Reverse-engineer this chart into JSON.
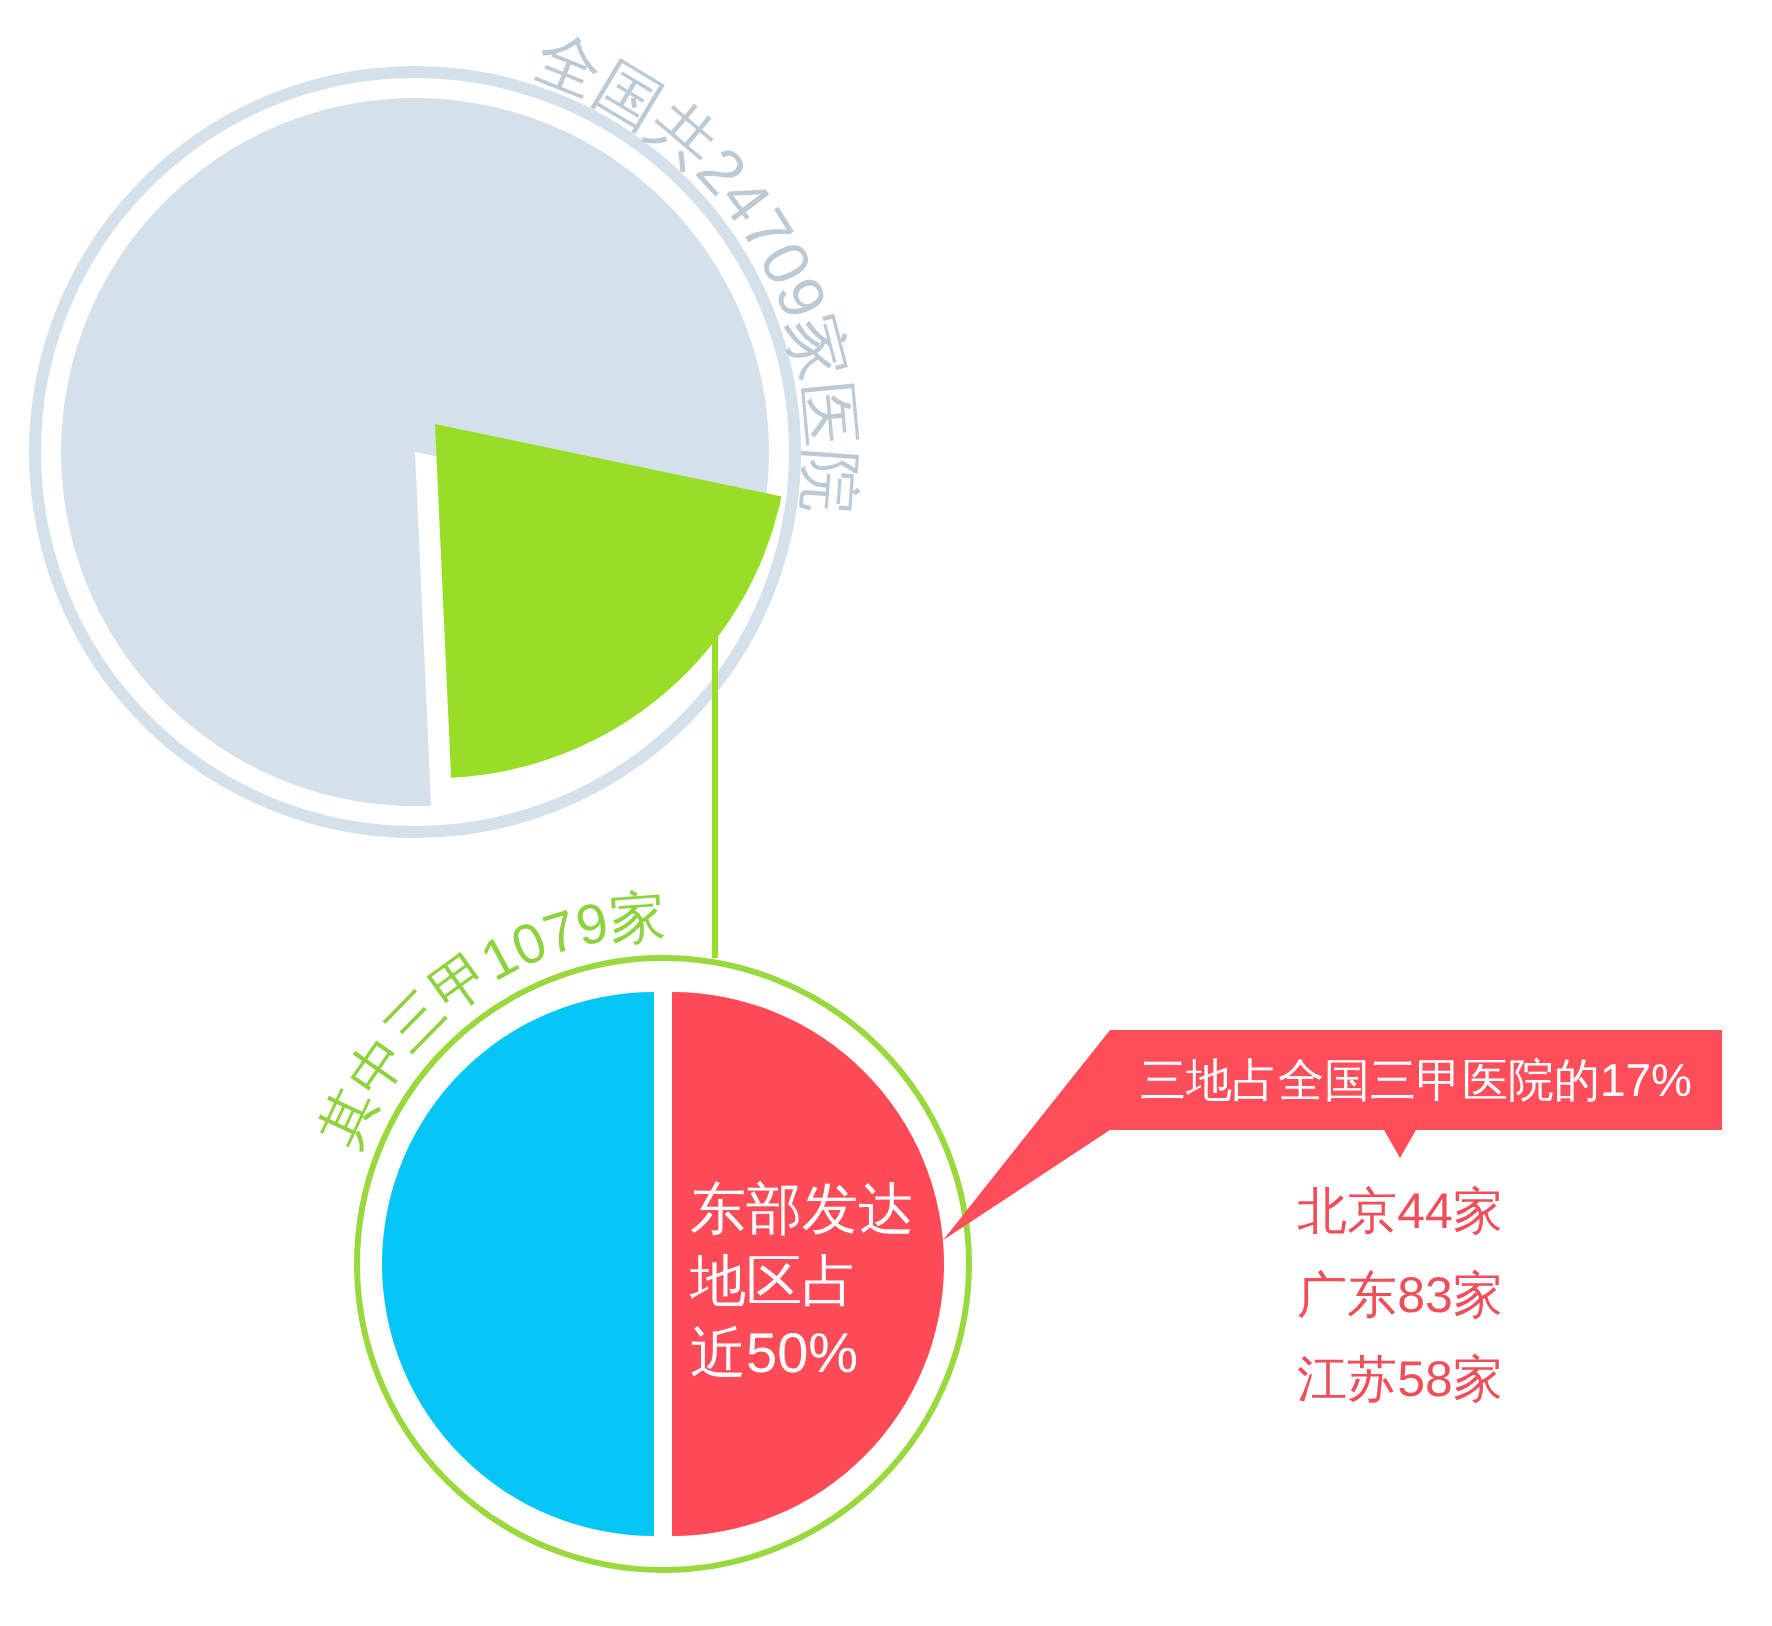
{
  "chart_data": [
    {
      "type": "pie",
      "title": "全国共24709家医院",
      "categories": [
        null,
        null
      ],
      "values": [
        79,
        21
      ],
      "colors": [
        "#d5e1ea",
        "#98de26"
      ]
    },
    {
      "type": "pie",
      "title": "其中三甲1079家",
      "categories": [
        null,
        null
      ],
      "values": [
        50,
        50
      ],
      "colors": [
        "#ff4a57",
        "#05c6f6"
      ],
      "value_labels": [
        "东部发达地区占近50%",
        null
      ],
      "annotations": [
        "三地占全国三甲医院的17%",
        "北京44家",
        "广东83家",
        "江苏58家"
      ]
    }
  ]
}
